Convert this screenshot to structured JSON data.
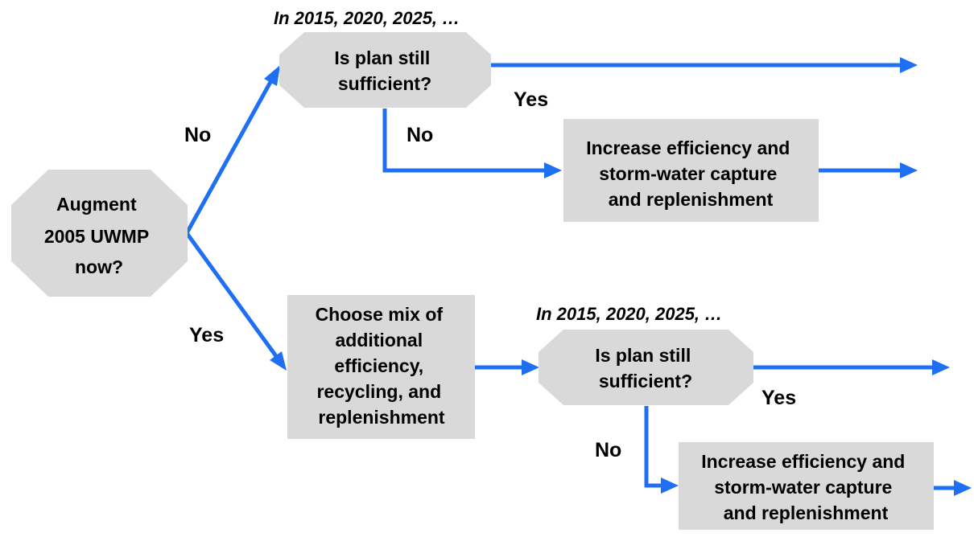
{
  "root": {
    "lines": [
      "Augment",
      "2005 UWMP",
      "now?"
    ]
  },
  "top_branch": {
    "caption": "In 2015, 2020, 2025, …",
    "decision": {
      "lines": [
        "Is plan still",
        "sufficient?"
      ]
    },
    "yes_label": "Yes",
    "no_label": "No",
    "action": {
      "lines": [
        "Increase efficiency and",
        "storm-water capture",
        "and replenishment"
      ]
    }
  },
  "root_labels": {
    "no": "No",
    "yes": "Yes"
  },
  "bottom_branch": {
    "choose": {
      "lines": [
        "Choose mix of",
        "additional",
        "efficiency,",
        "recycling, and",
        "replenishment"
      ]
    },
    "caption": "In 2015, 2020, 2025, …",
    "decision": {
      "lines": [
        "Is plan still",
        "sufficient?"
      ]
    },
    "yes_label": "Yes",
    "no_label": "No",
    "action": {
      "lines": [
        "Increase efficiency and",
        "storm-water capture",
        "and replenishment"
      ]
    }
  },
  "colors": {
    "arrow": "#1f6ff2",
    "box_fill": "#d9d9d9",
    "text": "#000000"
  }
}
